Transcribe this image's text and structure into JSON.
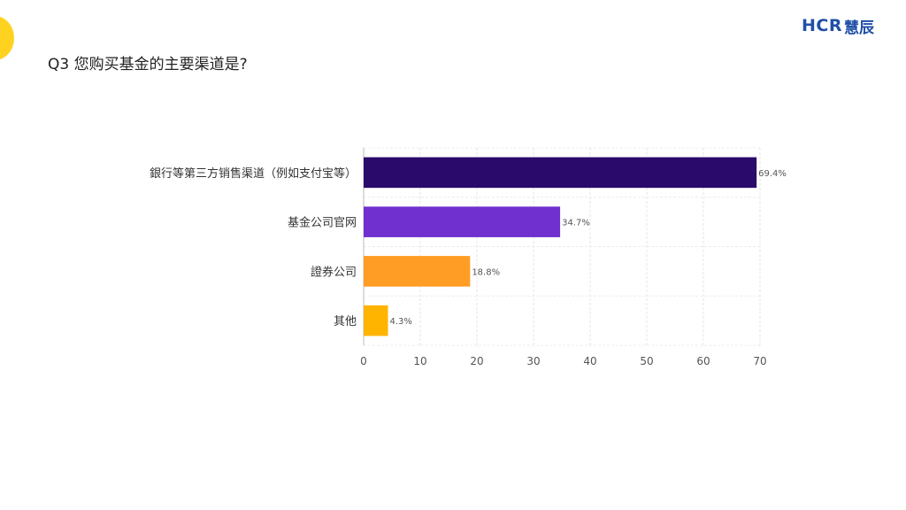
{
  "header": {
    "title": "Q3 您购买基金的主要渠道是?",
    "logo_latin": "HCR",
    "logo_cjk": "慧辰"
  },
  "colors": {
    "accent_logo": "#1f4fa8",
    "corner_blob": "#ffd21f"
  },
  "chart_data": {
    "type": "bar",
    "orientation": "horizontal",
    "categories": [
      "銀行等第三方销售渠道（例如支付宝等）",
      "基金公司官网",
      "證券公司",
      "其他"
    ],
    "values": [
      69.4,
      34.7,
      18.8,
      4.3
    ],
    "value_labels": [
      "69.4%",
      "34.7%",
      "18.8%",
      "4.3%"
    ],
    "bar_colors": [
      "#2a0a6b",
      "#7030d0",
      "#ff9d24",
      "#ffb400"
    ],
    "xlim": [
      0,
      70
    ],
    "xticks": [
      "0",
      "10",
      "20",
      "30",
      "40",
      "50",
      "60",
      "70"
    ],
    "grid": true,
    "title": "",
    "xlabel": "",
    "ylabel": ""
  }
}
